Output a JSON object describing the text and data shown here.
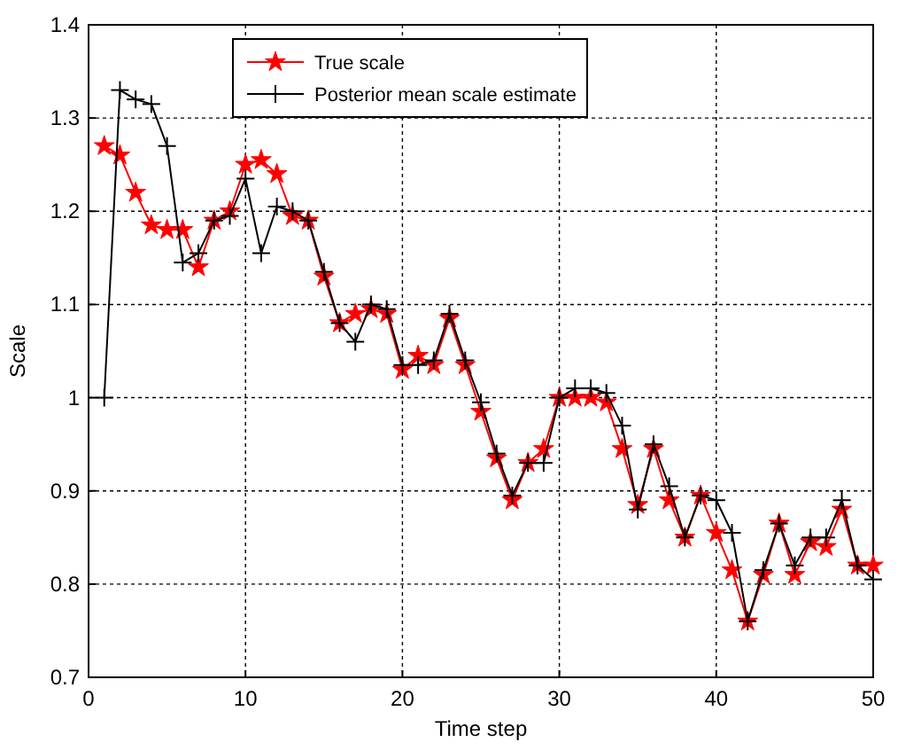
{
  "chart_data": {
    "type": "line",
    "xlabel": "Time step",
    "ylabel": "Scale",
    "xlim": [
      0,
      50
    ],
    "ylim": [
      0.7,
      1.4
    ],
    "xticks": [
      0,
      10,
      20,
      30,
      40,
      50
    ],
    "yticks": [
      0.7,
      0.8,
      0.9,
      1,
      1.1,
      1.2,
      1.3,
      1.4
    ],
    "grid": true,
    "legend": "top",
    "x": [
      1,
      2,
      3,
      4,
      5,
      6,
      7,
      8,
      9,
      10,
      11,
      12,
      13,
      14,
      15,
      16,
      17,
      18,
      19,
      20,
      21,
      22,
      23,
      24,
      25,
      26,
      27,
      28,
      29,
      30,
      31,
      32,
      33,
      34,
      35,
      36,
      37,
      38,
      39,
      40,
      41,
      42,
      43,
      44,
      45,
      46,
      47,
      48,
      49,
      50
    ],
    "series": [
      {
        "name": "True scale",
        "color": "#ff0000",
        "marker": "star",
        "values": [
          1.27,
          1.26,
          1.22,
          1.185,
          1.18,
          1.18,
          1.14,
          1.19,
          1.2,
          1.25,
          1.255,
          1.24,
          1.195,
          1.19,
          1.13,
          1.08,
          1.09,
          1.095,
          1.09,
          1.03,
          1.045,
          1.035,
          1.085,
          1.035,
          0.985,
          0.935,
          0.89,
          0.93,
          0.945,
          1.0,
          1.0,
          1.0,
          0.995,
          0.945,
          0.885,
          0.945,
          0.89,
          0.85,
          0.895,
          0.855,
          0.815,
          0.76,
          0.81,
          0.865,
          0.81,
          0.845,
          0.84,
          0.88,
          0.82,
          0.82
        ]
      },
      {
        "name": "Posterior mean scale estimate",
        "color": "#000000",
        "marker": "cross",
        "values": [
          1.0,
          1.33,
          1.32,
          1.315,
          1.27,
          1.145,
          1.155,
          1.19,
          1.195,
          1.235,
          1.155,
          1.205,
          1.2,
          1.19,
          1.135,
          1.08,
          1.06,
          1.1,
          1.095,
          1.035,
          1.035,
          1.04,
          1.09,
          1.04,
          0.995,
          0.94,
          0.895,
          0.93,
          0.93,
          1.0,
          1.01,
          1.01,
          1.005,
          0.97,
          0.88,
          0.95,
          0.905,
          0.85,
          0.895,
          0.89,
          0.855,
          0.76,
          0.815,
          0.865,
          0.82,
          0.85,
          0.85,
          0.89,
          0.82,
          0.805
        ]
      }
    ]
  }
}
